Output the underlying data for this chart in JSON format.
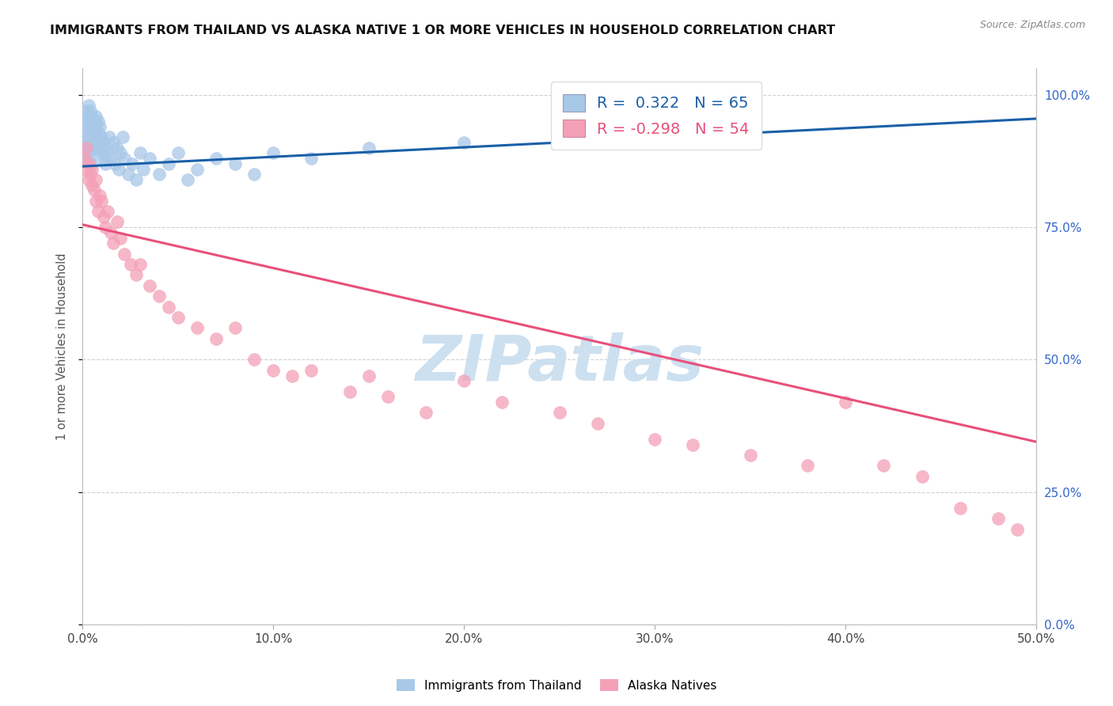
{
  "title": "IMMIGRANTS FROM THAILAND VS ALASKA NATIVE 1 OR MORE VEHICLES IN HOUSEHOLD CORRELATION CHART",
  "source": "Source: ZipAtlas.com",
  "ylabel": "1 or more Vehicles in Household",
  "xlim": [
    0.0,
    0.5
  ],
  "ylim": [
    0.0,
    1.05
  ],
  "xtick_labels": [
    "0.0%",
    "10.0%",
    "20.0%",
    "30.0%",
    "40.0%",
    "50.0%"
  ],
  "xtick_values": [
    0.0,
    0.1,
    0.2,
    0.3,
    0.4,
    0.5
  ],
  "ytick_values": [
    0.0,
    0.25,
    0.5,
    0.75,
    1.0
  ],
  "ytick_labels_right": [
    "0.0%",
    "25.0%",
    "50.0%",
    "75.0%",
    "100.0%"
  ],
  "legend_blue_R": "0.322",
  "legend_blue_N": "65",
  "legend_pink_R": "-0.298",
  "legend_pink_N": "54",
  "legend_blue_label": "Immigrants from Thailand",
  "legend_pink_label": "Alaska Natives",
  "blue_color": "#a8c8e8",
  "pink_color": "#f4a0b8",
  "blue_line_color": "#1a5fa8",
  "pink_line_color": "#e8507a",
  "watermark_text": "ZIPatlas",
  "watermark_color": "#cce0f0",
  "background_color": "#ffffff",
  "grid_color": "#d0d0d0",
  "blue_x": [
    0.001,
    0.001,
    0.002,
    0.002,
    0.002,
    0.002,
    0.003,
    0.003,
    0.003,
    0.003,
    0.003,
    0.004,
    0.004,
    0.004,
    0.004,
    0.005,
    0.005,
    0.005,
    0.005,
    0.006,
    0.006,
    0.006,
    0.007,
    0.007,
    0.007,
    0.008,
    0.008,
    0.008,
    0.009,
    0.009,
    0.01,
    0.01,
    0.011,
    0.011,
    0.012,
    0.012,
    0.013,
    0.014,
    0.015,
    0.016,
    0.017,
    0.018,
    0.019,
    0.02,
    0.021,
    0.022,
    0.024,
    0.026,
    0.028,
    0.03,
    0.032,
    0.035,
    0.04,
    0.045,
    0.05,
    0.055,
    0.06,
    0.07,
    0.08,
    0.09,
    0.1,
    0.12,
    0.15,
    0.2,
    0.32
  ],
  "blue_y": [
    0.88,
    0.92,
    0.95,
    0.97,
    0.93,
    0.9,
    0.98,
    0.96,
    0.94,
    0.91,
    0.89,
    0.97,
    0.95,
    0.92,
    0.88,
    0.96,
    0.94,
    0.91,
    0.87,
    0.95,
    0.93,
    0.9,
    0.96,
    0.94,
    0.91,
    0.95,
    0.93,
    0.9,
    0.94,
    0.91,
    0.92,
    0.89,
    0.91,
    0.88,
    0.9,
    0.87,
    0.89,
    0.92,
    0.88,
    0.91,
    0.87,
    0.9,
    0.86,
    0.89,
    0.92,
    0.88,
    0.85,
    0.87,
    0.84,
    0.89,
    0.86,
    0.88,
    0.85,
    0.87,
    0.89,
    0.84,
    0.86,
    0.88,
    0.87,
    0.85,
    0.89,
    0.88,
    0.9,
    0.91,
    0.93
  ],
  "pink_x": [
    0.001,
    0.002,
    0.002,
    0.003,
    0.003,
    0.004,
    0.005,
    0.005,
    0.006,
    0.007,
    0.007,
    0.008,
    0.009,
    0.01,
    0.011,
    0.012,
    0.013,
    0.015,
    0.016,
    0.018,
    0.02,
    0.022,
    0.025,
    0.028,
    0.03,
    0.035,
    0.04,
    0.045,
    0.05,
    0.06,
    0.07,
    0.08,
    0.09,
    0.1,
    0.11,
    0.12,
    0.14,
    0.15,
    0.16,
    0.18,
    0.2,
    0.22,
    0.25,
    0.27,
    0.3,
    0.32,
    0.35,
    0.38,
    0.4,
    0.42,
    0.44,
    0.46,
    0.48,
    0.49
  ],
  "pink_y": [
    0.88,
    0.86,
    0.9,
    0.84,
    0.87,
    0.85,
    0.83,
    0.86,
    0.82,
    0.8,
    0.84,
    0.78,
    0.81,
    0.8,
    0.77,
    0.75,
    0.78,
    0.74,
    0.72,
    0.76,
    0.73,
    0.7,
    0.68,
    0.66,
    0.68,
    0.64,
    0.62,
    0.6,
    0.58,
    0.56,
    0.54,
    0.56,
    0.5,
    0.48,
    0.47,
    0.48,
    0.44,
    0.47,
    0.43,
    0.4,
    0.46,
    0.42,
    0.4,
    0.38,
    0.35,
    0.34,
    0.32,
    0.3,
    0.42,
    0.3,
    0.28,
    0.22,
    0.2,
    0.18
  ],
  "blue_trend_x": [
    0.0,
    0.5
  ],
  "blue_trend_y": [
    0.865,
    0.955
  ],
  "pink_trend_x": [
    0.0,
    0.5
  ],
  "pink_trend_y": [
    0.755,
    0.345
  ]
}
